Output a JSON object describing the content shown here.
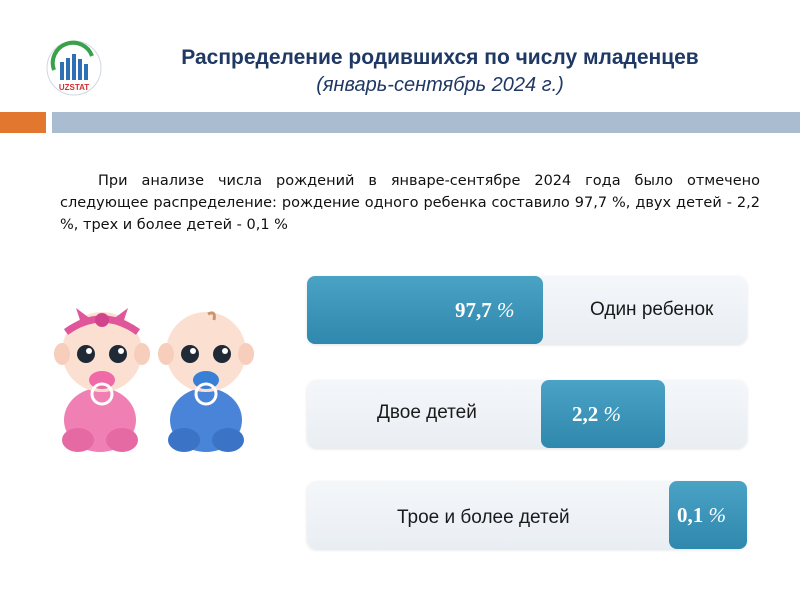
{
  "header": {
    "logo_text": "UZSTAT",
    "title": "Распределение родившихся по числу младенцев",
    "subtitle": "(январь-сентябрь 2024 г.)"
  },
  "intro": "При анализе числа рождений в январе-сентябре 2024 года было отмечено следующее распределение: рождение одного ребенка составило 97,7 %, двух детей - 2,2 %, трех и более детей - 0,1 %",
  "chart_data": {
    "type": "bar",
    "orientation": "horizontal",
    "categories": [
      "Один ребенок",
      "Двое детей",
      "Трое и более детей"
    ],
    "values": [
      97.7,
      2.2,
      0.1
    ],
    "value_labels": [
      "97,7",
      "2,2",
      "0,1"
    ],
    "unit": "%"
  },
  "colors": {
    "title": "#1f3864",
    "accent_orange": "#e2772f",
    "band_blue": "#a9bcd0",
    "bar_fill": "#3a94b8",
    "track": "#eef2f6"
  },
  "illustration": {
    "icons": [
      "baby-girl-pink-icon",
      "baby-boy-blue-icon"
    ]
  }
}
